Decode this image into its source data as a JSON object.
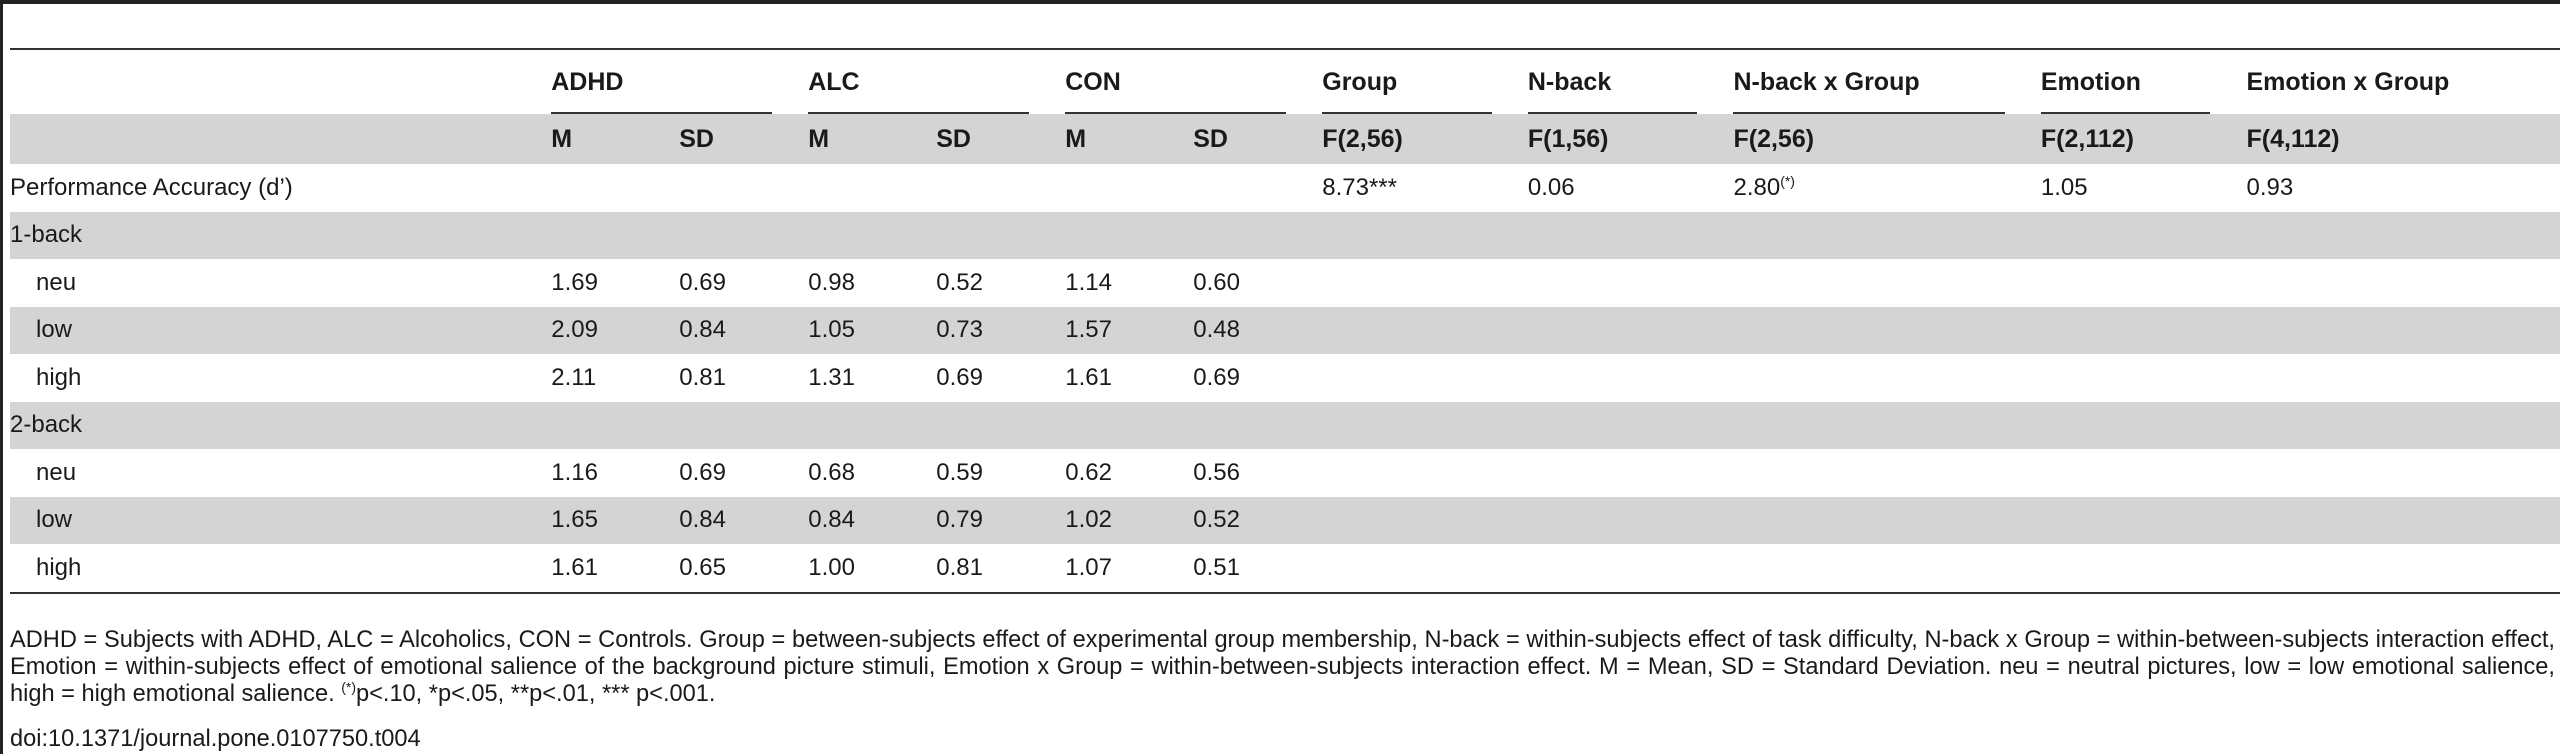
{
  "table": {
    "group_headers": [
      "ADHD",
      "ALC",
      "CON",
      "Group",
      "N-back",
      "N-back x Group",
      "Emotion",
      "Emotion x Group"
    ],
    "sub_headers": [
      "M",
      "SD",
      "M",
      "SD",
      "M",
      "SD",
      "F(2,56)",
      "F(1,56)",
      "F(2,56)",
      "F(2,112)",
      "F(4,112)"
    ],
    "perf_row": {
      "label": "Performance Accuracy (d’)",
      "group_f": "8.73***",
      "nback_f": "0.06",
      "nback_group_f": "2.80",
      "nback_group_sup": "(*)",
      "emotion_f": "1.05",
      "emotion_group_f": "0.93"
    },
    "sections": [
      {
        "label": "1-back",
        "rows": [
          {
            "label": "neu",
            "values": [
              "1.69",
              "0.69",
              "0.98",
              "0.52",
              "1.14",
              "0.60"
            ]
          },
          {
            "label": "low",
            "values": [
              "2.09",
              "0.84",
              "1.05",
              "0.73",
              "1.57",
              "0.48"
            ]
          },
          {
            "label": "high",
            "values": [
              "2.11",
              "0.81",
              "1.31",
              "0.69",
              "1.61",
              "0.69"
            ]
          }
        ]
      },
      {
        "label": "2-back",
        "rows": [
          {
            "label": "neu",
            "values": [
              "1.16",
              "0.69",
              "0.68",
              "0.59",
              "0.62",
              "0.56"
            ]
          },
          {
            "label": "low",
            "values": [
              "1.65",
              "0.84",
              "0.84",
              "0.79",
              "1.02",
              "0.52"
            ]
          },
          {
            "label": "high",
            "values": [
              "1.61",
              "0.65",
              "1.00",
              "0.81",
              "1.07",
              "0.51"
            ]
          }
        ]
      }
    ]
  },
  "footnote": {
    "main": "ADHD = Subjects with ADHD, ALC = Alcoholics, CON = Controls. Group = between-subjects effect of experimental group membership, N-back = within-subjects effect of task difficulty, N-back x Group = within-between-subjects interaction effect, Emotion = within-subjects effect of emotional salience of the background picture stimuli, Emotion x Group = within-between-subjects interaction effect. M = Mean, SD = Standard Deviation. neu = neutral pictures, low = low emotional salience, high = high emotional salience. ",
    "sig_sup": "(*)",
    "sig_rest": "p<.10, *p<.05, **p<.01, *** p<.001."
  },
  "doi": "doi:10.1371/journal.pone.0107750.t004"
}
